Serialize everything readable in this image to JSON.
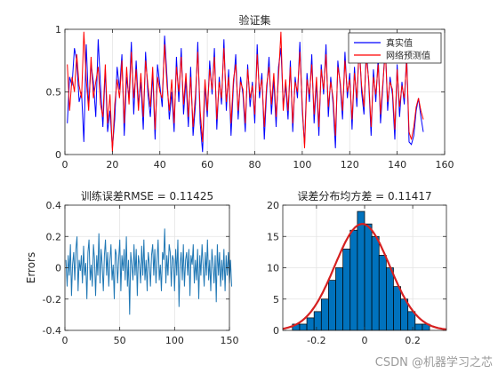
{
  "chart_data": [
    {
      "type": "line",
      "title": "验证集",
      "xlabel": "",
      "ylabel": "",
      "xlim": [
        0,
        160
      ],
      "ylim": [
        0,
        1
      ],
      "xticks": [
        0,
        20,
        40,
        60,
        80,
        100,
        120,
        140,
        160
      ],
      "yticks": [
        0,
        0.5,
        1
      ],
      "grid": true,
      "legend": "top-right",
      "colors": {
        "真实值": "#0000ff",
        "网络预测值": "#ff0000"
      },
      "x_start": 1,
      "series": [
        {
          "name": "真实值",
          "values": [
            0.25,
            0.62,
            0.55,
            0.85,
            0.75,
            0.42,
            0.5,
            0.1,
            0.88,
            0.38,
            0.72,
            0.58,
            0.3,
            0.92,
            0.55,
            0.22,
            0.68,
            0.18,
            0.35,
            0.05,
            0.28,
            0.7,
            0.52,
            0.8,
            0.15,
            0.62,
            0.45,
            0.9,
            0.32,
            0.75,
            0.4,
            0.58,
            0.2,
            0.82,
            0.48,
            0.3,
            0.65,
            0.12,
            0.72,
            0.55,
            0.38,
            0.95,
            0.62,
            0.28,
            0.5,
            0.18,
            0.78,
            0.42,
            0.85,
            0.32,
            0.6,
            0.22,
            0.7,
            0.15,
            0.4,
            0.9,
            0.25,
            0.02,
            0.55,
            0.3,
            0.75,
            0.48,
            0.85,
            0.2,
            0.62,
            0.4,
            0.92,
            0.35,
            0.68,
            0.15,
            0.55,
            0.8,
            0.28,
            0.62,
            0.48,
            0.18,
            0.72,
            0.38,
            0.58,
            0.25,
            0.88,
            0.45,
            0.65,
            0.12,
            0.5,
            0.78,
            0.32,
            0.6,
            0.22,
            0.7,
            0.85,
            0.4,
            0.55,
            0.28,
            0.75,
            0.18,
            0.62,
            0.45,
            0.9,
            0.35,
            0.08,
            0.65,
            0.42,
            0.8,
            0.25,
            0.58,
            0.15,
            0.72,
            0.48,
            0.88,
            0.3,
            0.62,
            0.4,
            0.05,
            0.75,
            0.55,
            0.28,
            0.82,
            0.45,
            0.65,
            0.2,
            0.7,
            0.38,
            0.92,
            0.5,
            0.32,
            0.85,
            0.58,
            0.15,
            0.68,
            0.42,
            0.78,
            0.25,
            0.55,
            0.9,
            0.35,
            0.62,
            0.48,
            0.12,
            0.72,
            0.3,
            0.58,
            0.4,
            0.8,
            0.1,
            0.08,
            0.15,
            0.35,
            0.45,
            0.3,
            0.18
          ]
        },
        {
          "name": "网络预测值",
          "values": [
            0.72,
            0.35,
            0.62,
            0.5,
            0.8,
            0.55,
            0.45,
            0.98,
            0.6,
            0.35,
            0.78,
            0.45,
            0.58,
            0.7,
            0.4,
            0.3,
            0.72,
            0.25,
            0.48,
            0.02,
            0.4,
            0.6,
            0.45,
            0.75,
            0.25,
            0.7,
            0.4,
            0.82,
            0.45,
            0.68,
            0.35,
            0.65,
            0.3,
            0.75,
            0.55,
            0.38,
            0.7,
            0.2,
            0.62,
            0.5,
            0.45,
            0.88,
            0.55,
            0.35,
            0.6,
            0.25,
            0.7,
            0.5,
            0.78,
            0.4,
            0.65,
            0.3,
            0.62,
            0.22,
            0.48,
            0.82,
            0.35,
            0.1,
            0.6,
            0.35,
            0.68,
            0.52,
            0.78,
            0.28,
            0.58,
            0.45,
            0.85,
            0.42,
            0.62,
            0.25,
            0.6,
            0.72,
            0.35,
            0.58,
            0.52,
            0.25,
            0.68,
            0.45,
            0.55,
            0.32,
            0.8,
            0.5,
            0.6,
            0.22,
            0.55,
            0.7,
            0.4,
            0.65,
            0.3,
            0.62,
            0.98,
            0.35,
            0.6,
            0.35,
            0.7,
            0.25,
            0.58,
            0.5,
            0.82,
            0.4,
            0.05,
            0.6,
            0.48,
            0.72,
            0.32,
            0.62,
            0.22,
            0.68,
            0.52,
            0.8,
            0.38,
            0.58,
            0.45,
            0.15,
            0.7,
            0.58,
            0.35,
            0.75,
            0.5,
            0.6,
            0.28,
            0.65,
            0.45,
            0.85,
            0.55,
            0.38,
            0.78,
            0.6,
            0.22,
            0.62,
            0.48,
            0.72,
            0.32,
            0.58,
            0.82,
            0.42,
            0.58,
            0.52,
            0.2,
            0.68,
            0.38,
            0.55,
            0.45,
            0.75,
            0.18,
            0.12,
            0.22,
            0.38,
            0.45,
            0.35,
            0.28
          ]
        }
      ]
    },
    {
      "type": "line",
      "title": "训练误差RMSE = 0.11425",
      "xlabel": "",
      "ylabel": "Errors",
      "xlim": [
        0,
        150
      ],
      "ylim": [
        -0.4,
        0.4
      ],
      "xticks": [
        0,
        50,
        100,
        150
      ],
      "yticks": [
        -0.4,
        -0.2,
        0,
        0.2,
        0.4
      ],
      "grid": true,
      "colors": {
        "line": "#1f77b4"
      },
      "x_start": 1,
      "series": [
        {
          "values": [
            0.05,
            -0.12,
            0.08,
            -0.05,
            0.15,
            -0.18,
            0.02,
            0.1,
            -0.08,
            0.12,
            0.2,
            -0.15,
            0.05,
            -0.02,
            0.08,
            -0.1,
            0.14,
            -0.05,
            0.03,
            -0.2,
            0.1,
            0.18,
            -0.08,
            0.02,
            -0.12,
            0.15,
            0.05,
            -0.18,
            0.08,
            -0.05,
            0.22,
            -0.1,
            0.12,
            0.02,
            -0.15,
            0.08,
            0.18,
            -0.05,
            0.1,
            -0.12,
            0.05,
            0.15,
            -0.08,
            0.02,
            -0.2,
            0.12,
            0.08,
            -0.1,
            0.05,
            0.18,
            -0.15,
            0.08,
            -0.02,
            0.12,
            -0.08,
            0.2,
            -0.12,
            0.05,
            -0.3,
            0.1,
            0.02,
            -0.08,
            0.15,
            -0.05,
            0.12,
            -0.18,
            0.08,
            0.02,
            -0.1,
            0.14,
            -0.05,
            0.18,
            -0.08,
            0.05,
            -0.15,
            0.1,
            0.02,
            -0.12,
            0.08,
            0.15,
            -0.05,
            0.12,
            -0.1,
            0.05,
            0.18,
            -0.08,
            0.02,
            -0.15,
            0.1,
            0.05,
            0.25,
            -0.1,
            0.08,
            -0.05,
            0.15,
            0.1,
            -0.12,
            0.08,
            0.05,
            -0.15,
            0.12,
            -0.05,
            0.18,
            -0.25,
            0.02,
            0.1,
            -0.08,
            0.15,
            -0.12,
            0.05,
            0.1,
            -0.05,
            0.12,
            -0.18,
            0.08,
            0.02,
            0.15,
            -0.1,
            0.05,
            -0.08,
            0.12,
            -0.2,
            0.08,
            -0.05,
            0.15,
            0.02,
            -0.12,
            0.1,
            -0.05,
            0.18,
            -0.08,
            0.05,
            -0.15,
            0.12,
            0.02,
            -0.1,
            0.08,
            -0.22,
            0.15,
            -0.05,
            0.1,
            -0.12,
            0.05,
            -0.08,
            0.12,
            -0.15,
            0.08,
            -0.05,
            0.1,
            -0.1,
            0.05,
            -0.12
          ]
        }
      ]
    },
    {
      "type": "bar",
      "title": "误差分布均方差 = 0.11417",
      "xlabel": "",
      "ylabel": "",
      "xlim": [
        -0.34,
        0.34
      ],
      "ylim": [
        0,
        20
      ],
      "xticks": [
        -0.2,
        0,
        0.2
      ],
      "yticks": [
        0,
        5,
        10,
        15,
        20
      ],
      "grid": true,
      "colors": {
        "bars": "#0072bd",
        "edge": "#000000",
        "fit": "#d62020"
      },
      "bin_edges": [
        -0.3,
        -0.27,
        -0.24,
        -0.21,
        -0.18,
        -0.15,
        -0.12,
        -0.09,
        -0.06,
        -0.03,
        0.0,
        0.03,
        0.06,
        0.09,
        0.12,
        0.15,
        0.18,
        0.21,
        0.24,
        0.27
      ],
      "counts": [
        1,
        1,
        2,
        3,
        5,
        8,
        10,
        13,
        16,
        19,
        17,
        15,
        12,
        10,
        7,
        5,
        3,
        1,
        1
      ],
      "fit": {
        "type": "normal",
        "mean": -0.01,
        "sigma": 0.11417,
        "peak": 17
      }
    }
  ],
  "watermark": "CSDN @机器学习之芯"
}
